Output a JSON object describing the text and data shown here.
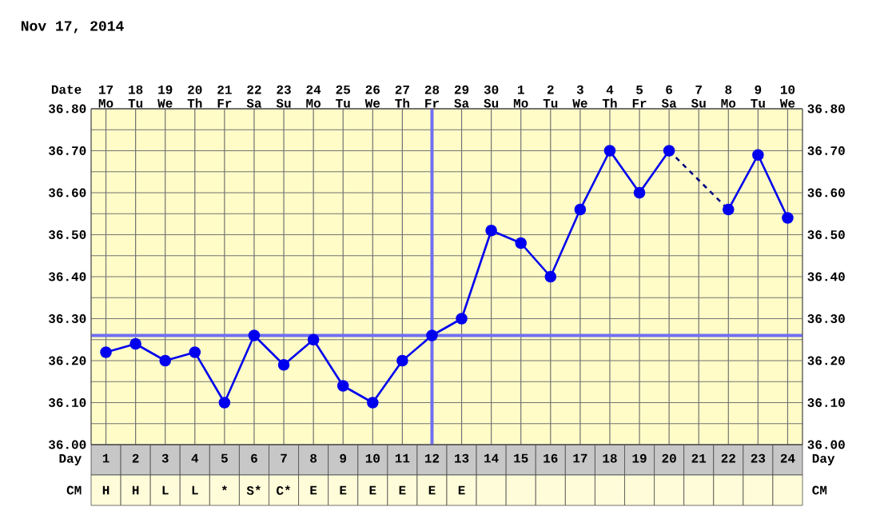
{
  "chart_data": {
    "type": "line",
    "title": "Nov 17, 2014",
    "xlabel": "Day",
    "x2label": "Date",
    "x": [
      1,
      2,
      3,
      4,
      5,
      6,
      7,
      8,
      9,
      10,
      11,
      12,
      13,
      14,
      15,
      16,
      17,
      18,
      19,
      20,
      21,
      22,
      23,
      24
    ],
    "series": [
      {
        "color": "#0000ee",
        "values": [
          36.22,
          36.24,
          36.2,
          36.22,
          36.1,
          36.26,
          36.19,
          36.25,
          36.14,
          36.1,
          36.2,
          36.26,
          36.3,
          36.51,
          36.48,
          36.4,
          36.56,
          36.7,
          36.6,
          36.7,
          null,
          36.56,
          36.69,
          36.54
        ]
      },
      {
        "type": "line",
        "x": [
          20,
          22
        ],
        "values": [
          36.7,
          36.56
        ],
        "color": "#000080",
        "line_style": "dashed",
        "marker": "none"
      }
    ],
    "marker": "circle",
    "grid": true,
    "xlim": [
      0.5,
      24.5
    ],
    "xticks": [
      1,
      2,
      3,
      4,
      5,
      6,
      7,
      8,
      9,
      10,
      11,
      12,
      13,
      14,
      15,
      16,
      17,
      18,
      19,
      20,
      21,
      22,
      23,
      24
    ],
    "x2lim": [
      "2014-11-16T12:00",
      "2014-12-10T12:00"
    ],
    "x2ticks": [
      {
        "value": "2014-11-17",
        "label": "17 Mo"
      },
      {
        "value": "2014-11-18",
        "label": "18 Tu"
      },
      {
        "value": "2014-11-19",
        "label": "19 We"
      },
      {
        "value": "2014-11-20",
        "label": "20 Th"
      },
      {
        "value": "2014-11-21",
        "label": "21 Fr"
      },
      {
        "value": "2014-11-22",
        "label": "22 Sa"
      },
      {
        "value": "2014-11-23",
        "label": "23 Su"
      },
      {
        "value": "2014-11-24",
        "label": "24 Mo"
      },
      {
        "value": "2014-11-25",
        "label": "25 Tu"
      },
      {
        "value": "2014-11-26",
        "label": "26 We"
      },
      {
        "value": "2014-11-27",
        "label": "27 Th"
      },
      {
        "value": "2014-11-28",
        "label": "28 Fr"
      },
      {
        "value": "2014-11-29",
        "label": "29 Sa"
      },
      {
        "value": "2014-11-30",
        "label": "30 Su"
      },
      {
        "value": "2014-12-01",
        "label": "1 Mo"
      },
      {
        "value": "2014-12-02",
        "label": "2 Tu"
      },
      {
        "value": "2014-12-03",
        "label": "3 We"
      },
      {
        "value": "2014-12-04",
        "label": "4 Th"
      },
      {
        "value": "2014-12-05",
        "label": "5 Fr"
      },
      {
        "value": "2014-12-06",
        "label": "6 Sa"
      },
      {
        "value": "2014-12-07",
        "label": "7 Su"
      },
      {
        "value": "2014-12-08",
        "label": "8 Mo"
      },
      {
        "value": "2014-12-09",
        "label": "9 Tu"
      },
      {
        "value": "2014-12-10",
        "label": "10 We"
      }
    ],
    "ylim": [
      36.0,
      36.8
    ],
    "yticks": [
      {
        "value": 36.0,
        "label": "36.00"
      },
      {
        "value": 36.1,
        "label": "36.10"
      },
      {
        "value": 36.2,
        "label": "36.20"
      },
      {
        "value": 36.3,
        "label": "36.30"
      },
      {
        "value": 36.4,
        "label": "36.40"
      },
      {
        "value": 36.5,
        "label": "36.50"
      },
      {
        "value": 36.6,
        "label": "36.60"
      },
      {
        "value": 36.7,
        "label": "36.70"
      },
      {
        "value": 36.8,
        "label": "36.80"
      }
    ],
    "y2lim": [
      36.0,
      36.8
    ],
    "y2ticks": [
      {
        "value": 36.0,
        "label": "36.00"
      },
      {
        "value": 36.1,
        "label": "36.10"
      },
      {
        "value": 36.2,
        "label": "36.20"
      },
      {
        "value": 36.3,
        "label": "36.30"
      },
      {
        "value": 36.4,
        "label": "36.40"
      },
      {
        "value": 36.5,
        "label": "36.50"
      },
      {
        "value": 36.6,
        "label": "36.60"
      },
      {
        "value": 36.7,
        "label": "36.70"
      },
      {
        "value": 36.8,
        "label": "36.80"
      }
    ],
    "ref_lines": [
      {
        "axis": "x",
        "value": 12,
        "color": "#6f6ff0"
      },
      {
        "axis": "y",
        "value": 36.26,
        "color": "#6f6ff0"
      }
    ],
    "annotations": [
      "CM",
      "H",
      "H",
      "L",
      "L",
      "*",
      "S*",
      "C*",
      "E",
      "E",
      "E",
      "E",
      "E",
      "E"
    ]
  }
}
